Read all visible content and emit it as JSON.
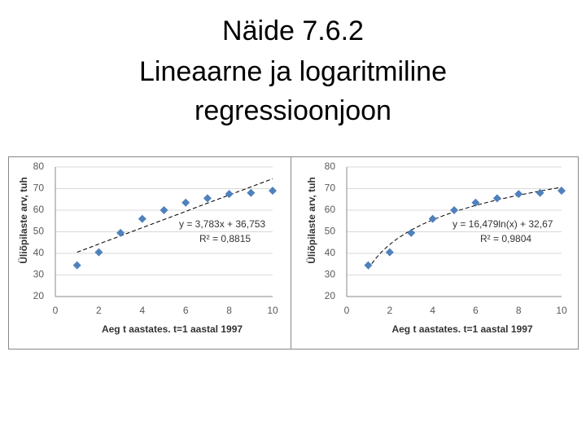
{
  "title_lines": [
    "Näide 7.6.2",
    "Lineaarne ja logaritmiline",
    "regressioonjoon"
  ],
  "chart_data": [
    {
      "type": "scatter",
      "x_label": "Aeg t aastates. t=1 aastal 1997",
      "y_label": "Üliõpilaste arv, tuh",
      "x": [
        1,
        2,
        3,
        4,
        5,
        6,
        7,
        8,
        9,
        10
      ],
      "series": [
        {
          "color": "#4f81bd",
          "values": [
            34.5,
            40.5,
            49.5,
            56,
            60,
            63.5,
            65.5,
            67.5,
            68,
            69
          ]
        }
      ],
      "xlim": [
        0,
        10
      ],
      "xticks": [
        0,
        2,
        4,
        6,
        8,
        10
      ],
      "ylim": [
        20,
        80
      ],
      "yticks": [
        20,
        30,
        40,
        50,
        60,
        70,
        80
      ],
      "grid": true,
      "trendline": {
        "kind": "linear",
        "slope": 3.783,
        "intercept": 36.753,
        "equation": "y = 3,783x + 36,753",
        "r_squared": "R² = 0,8815"
      }
    },
    {
      "type": "scatter",
      "x_label": "Aeg t aastates. t=1 aastal 1997",
      "y_label": "Üliõpilaste arv, tuh",
      "x": [
        1,
        2,
        3,
        4,
        5,
        6,
        7,
        8,
        9,
        10
      ],
      "series": [
        {
          "color": "#4f81bd",
          "values": [
            34.5,
            40.5,
            49.5,
            56,
            60,
            63.5,
            65.5,
            67.5,
            68,
            69
          ]
        }
      ],
      "xlim": [
        0,
        10
      ],
      "xticks": [
        0,
        2,
        4,
        6,
        8,
        10
      ],
      "ylim": [
        20,
        80
      ],
      "yticks": [
        20,
        30,
        40,
        50,
        60,
        70,
        80
      ],
      "grid": true,
      "trendline": {
        "kind": "logarithmic",
        "slope": 16.479,
        "intercept": 32.67,
        "equation": "y = 16,479ln(x) + 32,67",
        "r_squared": "R² = 0,9804"
      }
    }
  ]
}
